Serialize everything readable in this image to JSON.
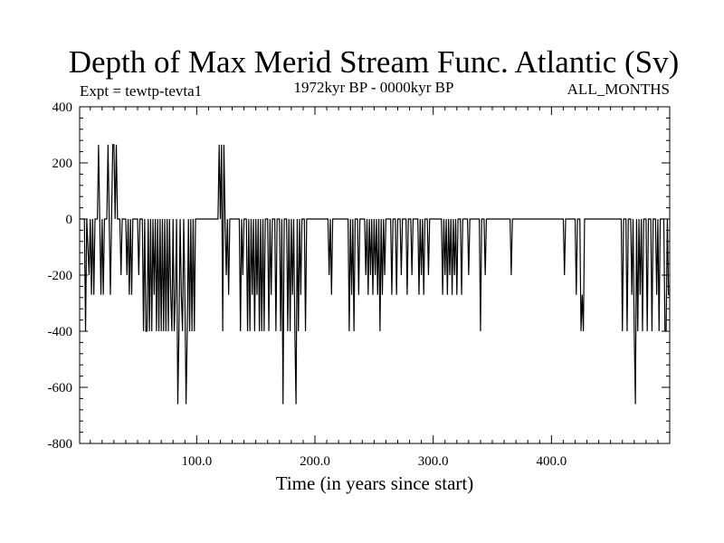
{
  "chart_data": {
    "type": "line",
    "title": "Depth of Max Merid Stream Func. Atlantic (Sv)",
    "subtitle_left": "Expt = tewtp-tevta1",
    "subtitle_center": "1972kyr BP - 0000kyr BP",
    "subtitle_right": "ALL_MONTHS",
    "xlabel": "Time (in years since start)",
    "ylabel": "",
    "xlim": [
      1,
      500
    ],
    "ylim": [
      -800,
      400
    ],
    "x_ticks": [
      100,
      200,
      300,
      400
    ],
    "x_tick_labels": [
      "100.0",
      "200.0",
      "300.0",
      "400.0"
    ],
    "y_ticks": [
      400,
      200,
      0,
      -200,
      -400,
      -600,
      -800
    ],
    "y_tick_labels": [
      "400",
      "200",
      "0",
      "-200",
      "-400",
      "-600",
      "-800"
    ],
    "grid": false,
    "legend": "none",
    "series": [
      {
        "color": "#000000",
        "points": [
          [
            1,
            0
          ],
          [
            5,
            0
          ],
          [
            6,
            -400
          ],
          [
            7,
            0
          ],
          [
            9,
            -200
          ],
          [
            10,
            0
          ],
          [
            11,
            -270
          ],
          [
            12,
            0
          ],
          [
            13,
            -270
          ],
          [
            14,
            0
          ],
          [
            16,
            0
          ],
          [
            17,
            265
          ],
          [
            18,
            0
          ],
          [
            19,
            -270
          ],
          [
            20,
            0
          ],
          [
            21,
            -270
          ],
          [
            22,
            0
          ],
          [
            24,
            0
          ],
          [
            25,
            265
          ],
          [
            26,
            0
          ],
          [
            27,
            -270
          ],
          [
            28,
            0
          ],
          [
            29,
            265
          ],
          [
            30,
            265
          ],
          [
            31,
            0
          ],
          [
            32,
            265
          ],
          [
            33,
            0
          ],
          [
            35,
            0
          ],
          [
            36,
            -200
          ],
          [
            37,
            0
          ],
          [
            40,
            0
          ],
          [
            41,
            -200
          ],
          [
            42,
            0
          ],
          [
            43,
            -270
          ],
          [
            44,
            0
          ],
          [
            45,
            -270
          ],
          [
            46,
            0
          ],
          [
            50,
            0
          ],
          [
            51,
            -200
          ],
          [
            52,
            0
          ],
          [
            54,
            0
          ],
          [
            55,
            -400
          ],
          [
            56,
            0
          ],
          [
            57,
            -400
          ],
          [
            58,
            -400
          ],
          [
            59,
            0
          ],
          [
            60,
            -400
          ],
          [
            61,
            0
          ],
          [
            62,
            -400
          ],
          [
            63,
            0
          ],
          [
            64,
            -270
          ],
          [
            65,
            0
          ],
          [
            66,
            -400
          ],
          [
            67,
            0
          ],
          [
            68,
            -400
          ],
          [
            69,
            0
          ],
          [
            70,
            -400
          ],
          [
            71,
            0
          ],
          [
            72,
            -400
          ],
          [
            73,
            0
          ],
          [
            74,
            -400
          ],
          [
            75,
            0
          ],
          [
            76,
            -400
          ],
          [
            77,
            0
          ],
          [
            78,
            -270
          ],
          [
            79,
            -400
          ],
          [
            80,
            0
          ],
          [
            81,
            -400
          ],
          [
            82,
            -270
          ],
          [
            83,
            0
          ],
          [
            84,
            -660
          ],
          [
            85,
            -400
          ],
          [
            86,
            0
          ],
          [
            87,
            -270
          ],
          [
            88,
            -400
          ],
          [
            89,
            0
          ],
          [
            90,
            -270
          ],
          [
            91,
            -660
          ],
          [
            92,
            -400
          ],
          [
            93,
            0
          ],
          [
            94,
            -400
          ],
          [
            95,
            0
          ],
          [
            96,
            -400
          ],
          [
            97,
            0
          ],
          [
            98,
            -400
          ],
          [
            99,
            0
          ],
          [
            118,
            0
          ],
          [
            119,
            265
          ],
          [
            120,
            0
          ],
          [
            121,
            265
          ],
          [
            122,
            -400
          ],
          [
            123,
            265
          ],
          [
            124,
            0
          ],
          [
            125,
            -200
          ],
          [
            126,
            0
          ],
          [
            127,
            -270
          ],
          [
            128,
            0
          ],
          [
            136,
            0
          ],
          [
            137,
            -400
          ],
          [
            138,
            0
          ],
          [
            139,
            -200
          ],
          [
            140,
            0
          ],
          [
            142,
            0
          ],
          [
            143,
            -400
          ],
          [
            144,
            0
          ],
          [
            145,
            -400
          ],
          [
            146,
            0
          ],
          [
            147,
            -270
          ],
          [
            148,
            0
          ],
          [
            149,
            -400
          ],
          [
            150,
            0
          ],
          [
            151,
            -270
          ],
          [
            152,
            0
          ],
          [
            153,
            -400
          ],
          [
            154,
            0
          ],
          [
            155,
            -400
          ],
          [
            156,
            0
          ],
          [
            157,
            -400
          ],
          [
            158,
            0
          ],
          [
            160,
            0
          ],
          [
            161,
            -400
          ],
          [
            162,
            0
          ],
          [
            163,
            -270
          ],
          [
            164,
            0
          ],
          [
            166,
            0
          ],
          [
            167,
            -400
          ],
          [
            168,
            0
          ],
          [
            170,
            0
          ],
          [
            171,
            -400
          ],
          [
            172,
            0
          ],
          [
            173,
            -660
          ],
          [
            174,
            0
          ],
          [
            176,
            0
          ],
          [
            177,
            -400
          ],
          [
            178,
            0
          ],
          [
            179,
            -400
          ],
          [
            180,
            0
          ],
          [
            181,
            -270
          ],
          [
            182,
            0
          ],
          [
            183,
            -400
          ],
          [
            184,
            -660
          ],
          [
            185,
            0
          ],
          [
            186,
            -400
          ],
          [
            187,
            0
          ],
          [
            188,
            -270
          ],
          [
            189,
            0
          ],
          [
            191,
            0
          ],
          [
            192,
            -400
          ],
          [
            193,
            0
          ],
          [
            211,
            0
          ],
          [
            212,
            -200
          ],
          [
            213,
            0
          ],
          [
            214,
            -270
          ],
          [
            215,
            0
          ],
          [
            228,
            0
          ],
          [
            229,
            -400
          ],
          [
            230,
            0
          ],
          [
            231,
            -270
          ],
          [
            232,
            0
          ],
          [
            233,
            -400
          ],
          [
            234,
            0
          ],
          [
            236,
            0
          ],
          [
            237,
            -270
          ],
          [
            238,
            0
          ],
          [
            242,
            0
          ],
          [
            243,
            -200
          ],
          [
            244,
            0
          ],
          [
            245,
            -270
          ],
          [
            246,
            0
          ],
          [
            247,
            -200
          ],
          [
            248,
            0
          ],
          [
            249,
            -270
          ],
          [
            250,
            0
          ],
          [
            251,
            -200
          ],
          [
            252,
            0
          ],
          [
            253,
            -270
          ],
          [
            254,
            0
          ],
          [
            255,
            -400
          ],
          [
            256,
            0
          ],
          [
            257,
            -270
          ],
          [
            258,
            0
          ],
          [
            259,
            -200
          ],
          [
            260,
            0
          ],
          [
            264,
            0
          ],
          [
            265,
            -270
          ],
          [
            266,
            0
          ],
          [
            268,
            0
          ],
          [
            269,
            -270
          ],
          [
            270,
            0
          ],
          [
            272,
            0
          ],
          [
            273,
            -200
          ],
          [
            274,
            0
          ],
          [
            277,
            0
          ],
          [
            278,
            -270
          ],
          [
            279,
            0
          ],
          [
            281,
            0
          ],
          [
            282,
            -200
          ],
          [
            283,
            0
          ],
          [
            287,
            0
          ],
          [
            288,
            -270
          ],
          [
            289,
            0
          ],
          [
            290,
            -200
          ],
          [
            291,
            0
          ],
          [
            292,
            -270
          ],
          [
            293,
            0
          ],
          [
            295,
            0
          ],
          [
            296,
            -200
          ],
          [
            297,
            0
          ],
          [
            307,
            0
          ],
          [
            308,
            -270
          ],
          [
            309,
            0
          ],
          [
            310,
            -200
          ],
          [
            311,
            0
          ],
          [
            312,
            -270
          ],
          [
            313,
            0
          ],
          [
            314,
            -200
          ],
          [
            315,
            0
          ],
          [
            316,
            -270
          ],
          [
            317,
            0
          ],
          [
            318,
            -200
          ],
          [
            319,
            0
          ],
          [
            320,
            -270
          ],
          [
            321,
            0
          ],
          [
            323,
            0
          ],
          [
            324,
            -270
          ],
          [
            325,
            0
          ],
          [
            329,
            0
          ],
          [
            330,
            -200
          ],
          [
            331,
            0
          ],
          [
            339,
            0
          ],
          [
            340,
            -400
          ],
          [
            341,
            0
          ],
          [
            343,
            0
          ],
          [
            344,
            -200
          ],
          [
            345,
            0
          ],
          [
            365,
            0
          ],
          [
            366,
            -200
          ],
          [
            367,
            0
          ],
          [
            410,
            0
          ],
          [
            411,
            -200
          ],
          [
            412,
            0
          ],
          [
            420,
            0
          ],
          [
            421,
            -270
          ],
          [
            422,
            0
          ],
          [
            424,
            0
          ],
          [
            425,
            -400
          ],
          [
            426,
            -270
          ],
          [
            427,
            -400
          ],
          [
            428,
            0
          ],
          [
            459,
            0
          ],
          [
            460,
            -400
          ],
          [
            461,
            0
          ],
          [
            463,
            0
          ],
          [
            464,
            -400
          ],
          [
            465,
            0
          ],
          [
            467,
            0
          ],
          [
            468,
            -270
          ],
          [
            469,
            0
          ],
          [
            470,
            -400
          ],
          [
            471,
            -660
          ],
          [
            472,
            0
          ],
          [
            473,
            -400
          ],
          [
            474,
            0
          ],
          [
            475,
            -270
          ],
          [
            476,
            0
          ],
          [
            477,
            -400
          ],
          [
            478,
            0
          ],
          [
            480,
            0
          ],
          [
            481,
            -400
          ],
          [
            482,
            0
          ],
          [
            484,
            0
          ],
          [
            485,
            -400
          ],
          [
            486,
            0
          ],
          [
            488,
            0
          ],
          [
            489,
            -270
          ],
          [
            490,
            0
          ],
          [
            491,
            -400
          ],
          [
            492,
            0
          ],
          [
            495,
            0
          ],
          [
            496,
            -400
          ],
          [
            497,
            -400
          ],
          [
            498,
            0
          ],
          [
            499,
            -270
          ],
          [
            500,
            -270
          ]
        ]
      }
    ]
  }
}
